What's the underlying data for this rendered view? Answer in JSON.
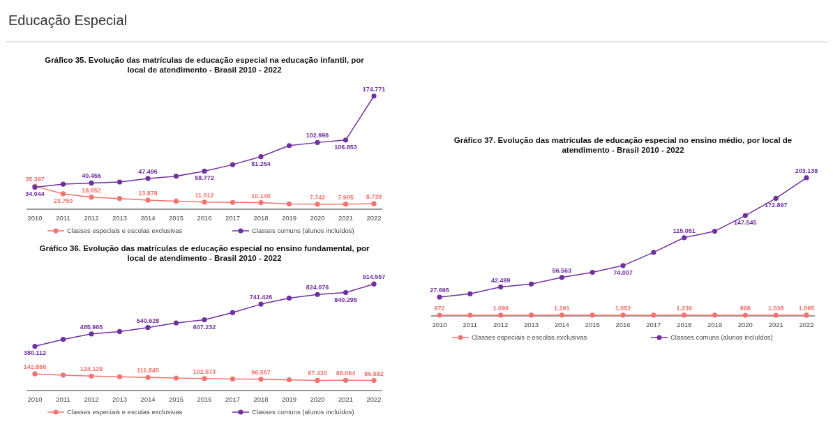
{
  "chart_data": [
    {
      "type": "line",
      "title": "Gráfico 35. Evolução das matrículas de educação especial na educação infantil, por local de atendimento  - Brasil 2010 - 2022",
      "annotations": [
        "Educação Especial"
      ],
      "categories": [
        "2010",
        "2011",
        "2012",
        "2013",
        "2014",
        "2015",
        "2016",
        "2017",
        "2018",
        "2019",
        "2020",
        "2021",
        "2022"
      ],
      "tick_labels": "x",
      "legend": "bottom",
      "marker": "circle",
      "series": [
        {
          "name": "Classes especiais e escolas exclusivas",
          "color": "#f4736f",
          "values": [
            35397,
            23750,
            18652,
            16500,
            13878,
            12500,
            11012,
            10500,
            10140,
            8200,
            7742,
            7905,
            8739
          ],
          "value_labels": [
            "35.397",
            "23.750",
            "18.652",
            null,
            "13.878",
            null,
            "11.012",
            null,
            "10.140",
            null,
            "7.742",
            "7.905",
            "8.739"
          ]
        },
        {
          "name": "Classes comuns (alunos incluídos)",
          "color": "#7030a0",
          "values": [
            34044,
            38700,
            40456,
            42000,
            47496,
            51000,
            58772,
            68800,
            81254,
            98300,
            102996,
            106853,
            174771
          ],
          "value_labels": [
            "34.044",
            null,
            "40.456",
            null,
            "47.496",
            null,
            "58.772",
            null,
            "81.254",
            null,
            "102.996",
            "106.853",
            "174.771"
          ]
        }
      ]
    },
    {
      "type": "line",
      "title": "Gráfico 36. Evolução das matrículas de educação especial no ensino fundamental, por local de atendimento  - Brasil 2010 - 2022",
      "categories": [
        "2010",
        "2011",
        "2012",
        "2013",
        "2014",
        "2015",
        "2016",
        "2017",
        "2018",
        "2019",
        "2020",
        "2021",
        "2022"
      ],
      "tick_labels": "x",
      "legend": "bottom",
      "marker": "circle",
      "series": [
        {
          "name": "Classes especiais e escolas exclusivas",
          "color": "#f4736f",
          "values": [
            142866,
            132000,
            124129,
            118000,
            111845,
            107000,
            102573,
            99000,
            96567,
            92000,
            87430,
            88064,
            86582
          ],
          "value_labels": [
            "142.866",
            null,
            "124.129",
            null,
            "111.845",
            null,
            "102.573",
            null,
            "96.567",
            null,
            "87.430",
            "88.064",
            "86.582"
          ]
        },
        {
          "name": "Classes comuns (alunos incluídos)",
          "color": "#7030a0",
          "values": [
            380112,
            438800,
            485965,
            506200,
            540628,
            580100,
            607232,
            669200,
            741426,
            793100,
            824076,
            840295,
            914557
          ],
          "value_labels": [
            "380.112",
            null,
            "485.965",
            null,
            "540.628",
            null,
            "607.232",
            null,
            "741.426",
            null,
            "824.076",
            "840.295",
            "914.557"
          ]
        }
      ]
    },
    {
      "type": "line",
      "title": "Gráfico 37. Evolução das matrículas de educação especial no ensino médio, por local de atendimento  - Brasil 2010 - 2022",
      "categories": [
        "2010",
        "2011",
        "2012",
        "2013",
        "2014",
        "2015",
        "2016",
        "2017",
        "2018",
        "2019",
        "2020",
        "2021",
        "2022"
      ],
      "tick_labels": "x",
      "legend": "bottom",
      "marker": "circle",
      "series": [
        {
          "name": "Classes especiais e escolas exclusivas",
          "color": "#f4736f",
          "values": [
            972,
            1000,
            1090,
            1150,
            1191,
            1120,
            1052,
            1150,
            1236,
            1100,
            968,
            1038,
            1095
          ],
          "value_labels": [
            "972",
            null,
            "1.090",
            null,
            "1.191",
            null,
            "1.052",
            null,
            "1.236",
            null,
            "968",
            "1.038",
            "1.095"
          ]
        },
        {
          "name": "Classes comuns (alunos incluídos)",
          "color": "#7030a0",
          "values": [
            27695,
            32500,
            42499,
            46900,
            56563,
            64100,
            74007,
            93400,
            115051,
            124500,
            147545,
            172897,
            203138
          ],
          "value_labels": [
            "27.695",
            null,
            "42.499",
            null,
            "56.563",
            null,
            "74.007",
            null,
            "115.051",
            null,
            "147.545",
            "172.897",
            "203.138"
          ]
        }
      ]
    }
  ]
}
